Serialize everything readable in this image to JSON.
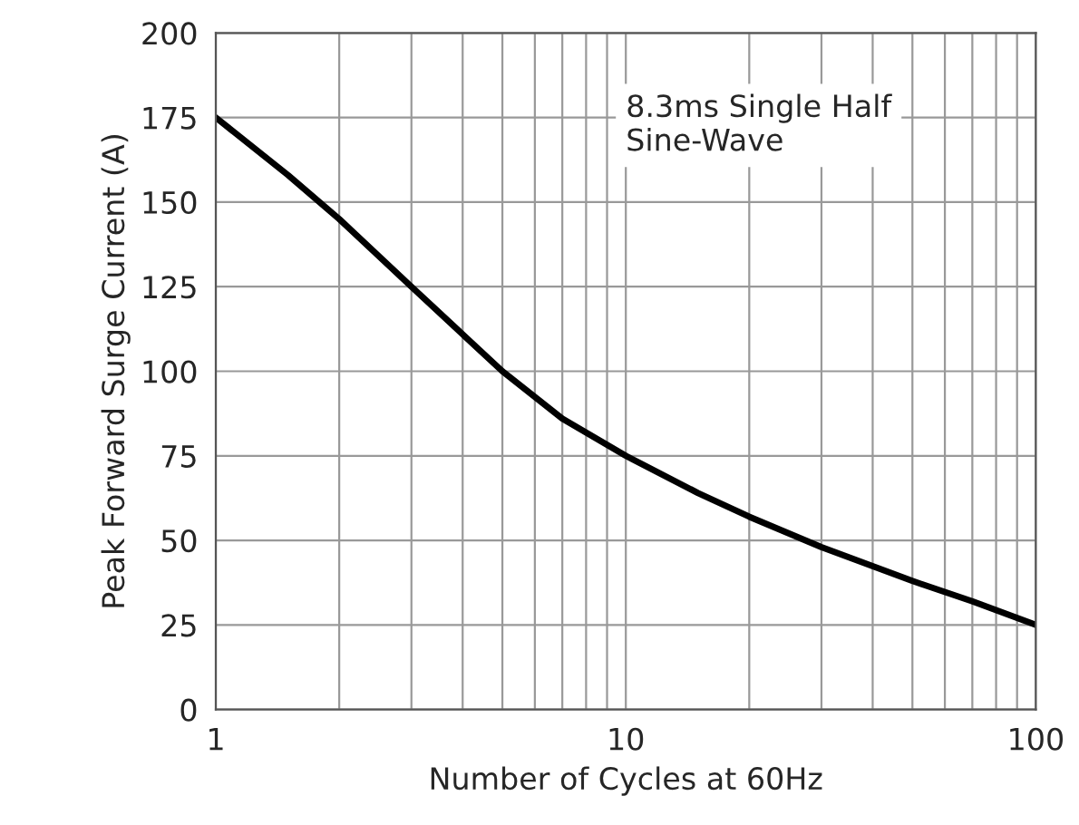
{
  "chart_data": {
    "type": "line",
    "xlabel": "Number of Cycles at 60Hz",
    "ylabel": "Peak Forward Surge Current (A)",
    "annotations": [
      "8.3ms Single Half\nSine-Wave"
    ],
    "series": [
      {
        "color": "#000000",
        "x": [
          1,
          1.5,
          2,
          3,
          5,
          7,
          10,
          15,
          20,
          30,
          50,
          70,
          100
        ],
        "values": [
          175,
          158,
          145,
          125,
          100,
          86,
          75,
          64,
          57,
          48,
          38,
          32,
          25
        ]
      }
    ],
    "log": "x",
    "xlim": [
      1,
      100
    ],
    "xticks": [
      1,
      10,
      100
    ],
    "ylim": [
      0,
      200
    ],
    "yticks": [
      0,
      25,
      50,
      75,
      100,
      125,
      150,
      175,
      200
    ],
    "grid": true,
    "marker": "none",
    "line_style": "solid"
  }
}
